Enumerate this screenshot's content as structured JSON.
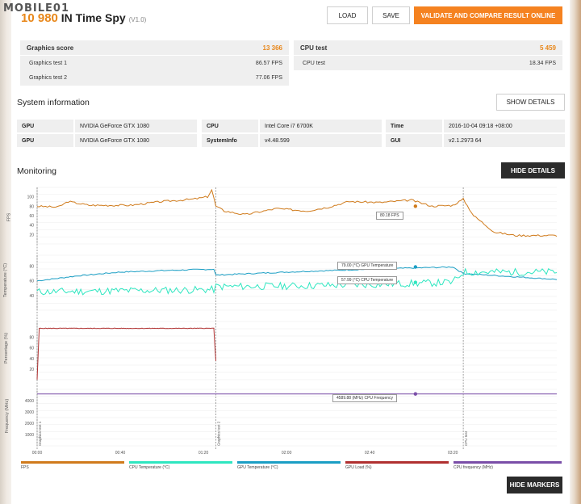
{
  "watermark": "MOBILE01",
  "header": {
    "score": "10 980",
    "in": "IN",
    "benchmark": "Time Spy",
    "version": "(V1.0)",
    "load_label": "LOAD",
    "save_label": "SAVE",
    "validate_label": "VALIDATE AND COMPARE RESULT ONLINE"
  },
  "graphics": {
    "label": "Graphics score",
    "value": "13 366",
    "tests": [
      {
        "name": "Graphics test 1",
        "value": "86.57 FPS"
      },
      {
        "name": "Graphics test 2",
        "value": "77.06 FPS"
      }
    ]
  },
  "cpu": {
    "label": "CPU test",
    "value": "5 459",
    "tests": [
      {
        "name": "CPU test",
        "value": "18.34 FPS"
      }
    ]
  },
  "system": {
    "title": "System information",
    "show_details": "SHOW DETAILS",
    "rows": [
      [
        {
          "k": "GPU",
          "v": "NVIDIA GeForce GTX 1080"
        },
        {
          "k": "CPU",
          "v": "Intel Core i7 6700K"
        },
        {
          "k": "Time",
          "v": "2016-10-04 09:18 +08:00"
        }
      ],
      [
        {
          "k": "GPU",
          "v": "NVIDIA GeForce GTX 1080"
        },
        {
          "k": "SystemInfo",
          "v": "v4.48.599"
        },
        {
          "k": "GUI",
          "v": "v2.1.2973 64"
        }
      ]
    ]
  },
  "monitoring": {
    "title": "Monitoring",
    "hide_details": "HIDE DETAILS",
    "hide_markers": "HIDE MARKERS",
    "y_labels": {
      "fps": "FPS",
      "temp": "Temperature (°C)",
      "pct": "Percentage (%)",
      "freq": "Frequency (MHz)"
    },
    "markers": [
      "Graphics test 1",
      "Graphics test 2",
      "CPU test"
    ],
    "x_ticks": [
      "00:00",
      "00:40",
      "01:20",
      "02:00",
      "02:40",
      "03:20"
    ],
    "fps_ticks": [
      "100",
      "80",
      "60",
      "40",
      "20"
    ],
    "temp_ticks": [
      "80",
      "60",
      "40"
    ],
    "pct_ticks": [
      "80",
      "60",
      "40",
      "20"
    ],
    "freq_ticks": [
      "4000",
      "3000",
      "2000",
      "1000"
    ],
    "tooltips": {
      "fps": "80.18 FPS",
      "gpu_temp": "79.00 (°C) GPU Temperature",
      "cpu_temp": "57.99 (°C) CPU Temperature",
      "cpu_freq": "4589.88 (MHz) CPU Frequency"
    },
    "legend": [
      {
        "name": "FPS",
        "color": "#d07b1c"
      },
      {
        "name": "CPU Temperature (°C)",
        "color": "#2ee6c0"
      },
      {
        "name": "GPU Temperature (°C)",
        "color": "#1a9ec4"
      },
      {
        "name": "GPU Load (%)",
        "color": "#b03030"
      },
      {
        "name": "CPU frequency (MHz)",
        "color": "#7a4ea8"
      }
    ]
  },
  "chart_data": {
    "type": "line",
    "x_unit": "mm:ss",
    "series": [
      {
        "name": "FPS",
        "points": [
          [
            0,
            80
          ],
          [
            10,
            78
          ],
          [
            15,
            90
          ],
          [
            25,
            82
          ],
          [
            45,
            82
          ],
          [
            60,
            90
          ],
          [
            75,
            95
          ],
          [
            82,
            100
          ],
          [
            84,
            115
          ],
          [
            86,
            80
          ],
          [
            90,
            70
          ],
          [
            100,
            62
          ],
          [
            115,
            75
          ],
          [
            130,
            70
          ],
          [
            140,
            78
          ],
          [
            150,
            90
          ],
          [
            165,
            88
          ],
          [
            180,
            93
          ],
          [
            190,
            80
          ],
          [
            200,
            82
          ],
          [
            205,
            95
          ],
          [
            210,
            60
          ],
          [
            220,
            25
          ],
          [
            230,
            18
          ],
          [
            250,
            18
          ]
        ]
      },
      {
        "name": "GPU Temperature (°C)",
        "points": [
          [
            0,
            60
          ],
          [
            20,
            67
          ],
          [
            40,
            72
          ],
          [
            60,
            74
          ],
          [
            85,
            76
          ],
          [
            86,
            68
          ],
          [
            120,
            72
          ],
          [
            160,
            76
          ],
          [
            200,
            79
          ],
          [
            205,
            70
          ],
          [
            250,
            62
          ]
        ]
      },
      {
        "name": "CPU Temperature (°C)",
        "points": [
          [
            0,
            45
          ],
          [
            85,
            48
          ],
          [
            86,
            52
          ],
          [
            120,
            53
          ],
          [
            160,
            55
          ],
          [
            200,
            58
          ],
          [
            205,
            72
          ],
          [
            250,
            72
          ]
        ]
      },
      {
        "name": "GPU Load (%)",
        "points": [
          [
            0,
            0
          ],
          [
            1,
            97
          ],
          [
            85,
            97
          ],
          [
            86,
            35
          ]
        ]
      },
      {
        "name": "CPU frequency (MHz)",
        "points": [
          [
            0,
            4590
          ],
          [
            250,
            4590
          ]
        ]
      }
    ]
  }
}
